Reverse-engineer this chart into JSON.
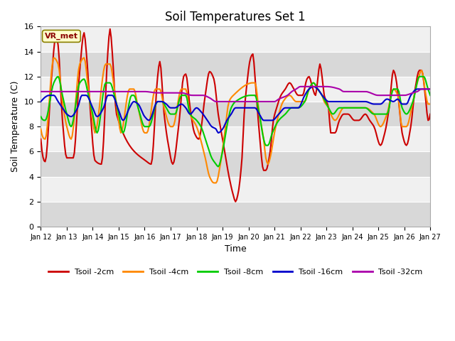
{
  "title": "Soil Temperatures Set 1",
  "xlabel": "Time",
  "ylabel": "Soil Temperature (C)",
  "ylim": [
    0,
    16
  ],
  "xlim": [
    0,
    360
  ],
  "x_tick_labels": [
    "Jan 12",
    "Jan 13",
    "Jan 14",
    "Jan 15",
    "Jan 16",
    "Jan 17",
    "Jan 18",
    "Jan 19",
    "Jan 20",
    "Jan 21",
    "Jan 22",
    "Jan 23",
    "Jan 24",
    "Jan 25",
    "Jan 26",
    "Jan 27"
  ],
  "x_tick_positions": [
    0,
    24,
    48,
    72,
    96,
    120,
    144,
    168,
    192,
    216,
    240,
    264,
    288,
    312,
    336,
    360
  ],
  "background_color": "#e8e8e8",
  "band_color_light": "#f0f0f0",
  "band_color_dark": "#d8d8d8",
  "figure_background": "#ffffff",
  "annotation_text": "VR_met",
  "legend_labels": [
    "Tsoil -2cm",
    "Tsoil -4cm",
    "Tsoil -8cm",
    "Tsoil -16cm",
    "Tsoil -32cm"
  ],
  "legend_colors": [
    "#cc0000",
    "#ff8800",
    "#00cc00",
    "#0000cc",
    "#aa00aa"
  ],
  "line_widths": [
    1.5,
    1.5,
    1.5,
    1.5,
    1.5
  ],
  "yticks": [
    0,
    2,
    4,
    6,
    8,
    10,
    12,
    14,
    16
  ]
}
